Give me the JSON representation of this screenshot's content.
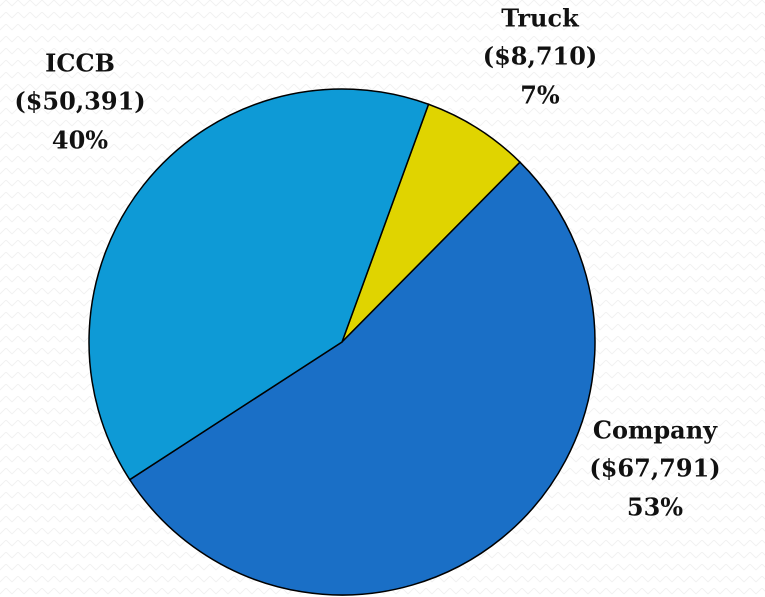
{
  "chart_data": {
    "type": "pie",
    "categories": [
      "Truck",
      "Company",
      "ICCB"
    ],
    "values": [
      8710,
      67791,
      50391
    ],
    "value_labels": [
      "($8,710)",
      "($67,791)",
      "($50,391)"
    ],
    "percent_labels": [
      "7%",
      "53%",
      "40%"
    ],
    "colors": [
      "#e0d400",
      "#1a6fc6",
      "#0e9ad6"
    ]
  }
}
